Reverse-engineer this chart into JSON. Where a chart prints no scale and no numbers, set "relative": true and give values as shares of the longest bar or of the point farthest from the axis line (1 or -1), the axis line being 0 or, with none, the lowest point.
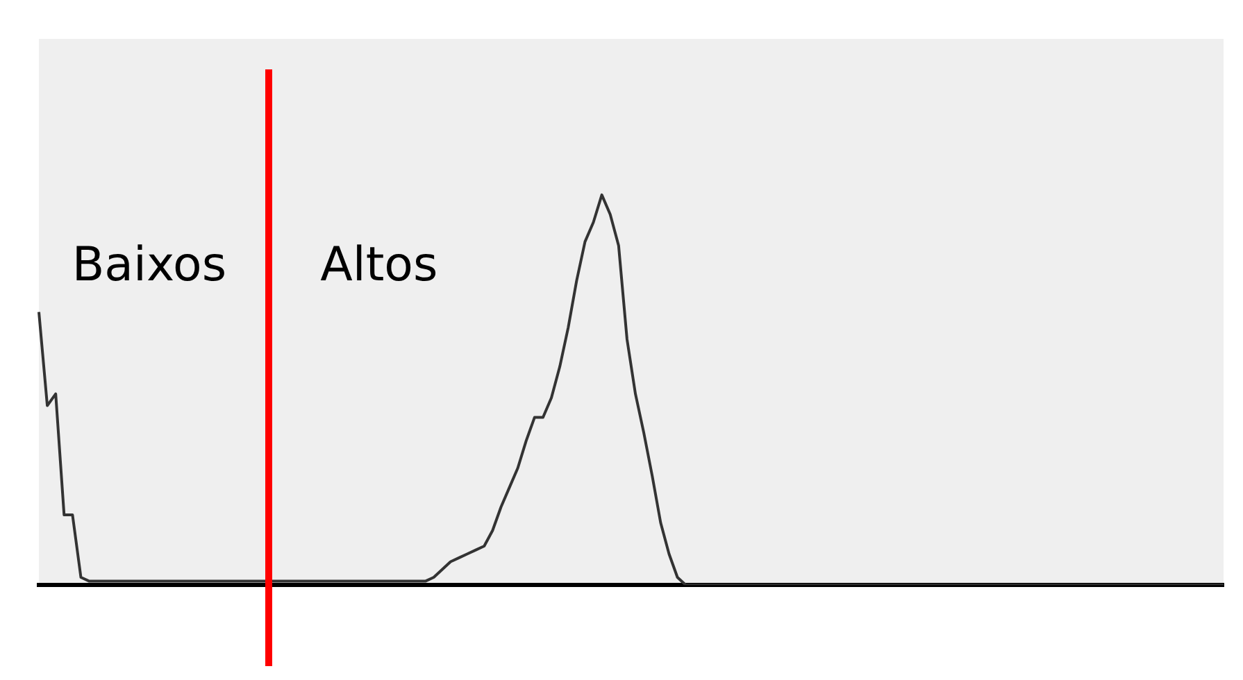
{
  "chart_data": {
    "type": "line",
    "relative": true,
    "legend": false,
    "marker": "none",
    "line_style": "solid",
    "categories": [
      null,
      null,
      null,
      null,
      null,
      null,
      null,
      null,
      null,
      null,
      null,
      null,
      null,
      null,
      null,
      null,
      null,
      null,
      null,
      null,
      null,
      null,
      null,
      null,
      null,
      null,
      null,
      null,
      null,
      null,
      null,
      null,
      null,
      null,
      null,
      null,
      null,
      null,
      null,
      null,
      null,
      null,
      null,
      null,
      null,
      null,
      null,
      null,
      null,
      null,
      null,
      null,
      null,
      null,
      null,
      null,
      null,
      null,
      null,
      null,
      null,
      null,
      null,
      null,
      null,
      null,
      null,
      null,
      null,
      null,
      null,
      null,
      null,
      null,
      null,
      null,
      null,
      null,
      null,
      null,
      null,
      null,
      null,
      null,
      null,
      null,
      null,
      null,
      null,
      null,
      null,
      null,
      null,
      null,
      null,
      null,
      null,
      null,
      null,
      null,
      null,
      null,
      null,
      null,
      null,
      null,
      null,
      null,
      null,
      null,
      null,
      null,
      null,
      null,
      null,
      null,
      null,
      null,
      null,
      null,
      null,
      null,
      null,
      null,
      null,
      null,
      null,
      null,
      null,
      null,
      null,
      null,
      null,
      null,
      null,
      null,
      null,
      null,
      null,
      null,
      null,
      null
    ],
    "series": [
      {
        "color": "#333333",
        "values": [
          0.7,
          0.46,
          0.49,
          0.18,
          0.18,
          0.02,
          0.01,
          0.01,
          0.01,
          0.01,
          0.01,
          0.01,
          0.01,
          0.01,
          0.01,
          0.01,
          0.01,
          0.01,
          0.01,
          0.01,
          0.01,
          0.01,
          0.01,
          0.01,
          0.01,
          0.01,
          0.01,
          0.01,
          0.01,
          0.01,
          0.01,
          0.01,
          0.01,
          0.01,
          0.01,
          0.01,
          0.01,
          0.01,
          0.01,
          0.01,
          0.01,
          0.01,
          0.01,
          0.01,
          0.01,
          0.01,
          0.01,
          0.02,
          0.04,
          0.06,
          0.07,
          0.08,
          0.09,
          0.1,
          0.14,
          0.2,
          0.25,
          0.3,
          0.37,
          0.43,
          0.43,
          0.48,
          0.56,
          0.66,
          0.78,
          0.88,
          0.93,
          1,
          0.95,
          0.87,
          0.63,
          0.49,
          0.39,
          0.28,
          0.16,
          0.08,
          0.02,
          0,
          0,
          0,
          0,
          0,
          0,
          0,
          0,
          0,
          0,
          0,
          0,
          0,
          0,
          0,
          0,
          0,
          0,
          0,
          0,
          0,
          0,
          0,
          0,
          0,
          0,
          0,
          0,
          0,
          0,
          0,
          0,
          0,
          0,
          0,
          0,
          0,
          0,
          0,
          0,
          0,
          0,
          0,
          0,
          0,
          0,
          0,
          0,
          0,
          0,
          0,
          0,
          0,
          0,
          0,
          0,
          0,
          0,
          0,
          0,
          0,
          0,
          0,
          0,
          0
        ]
      }
    ],
    "annotations": [
      "Baixos",
      "Altos"
    ]
  }
}
